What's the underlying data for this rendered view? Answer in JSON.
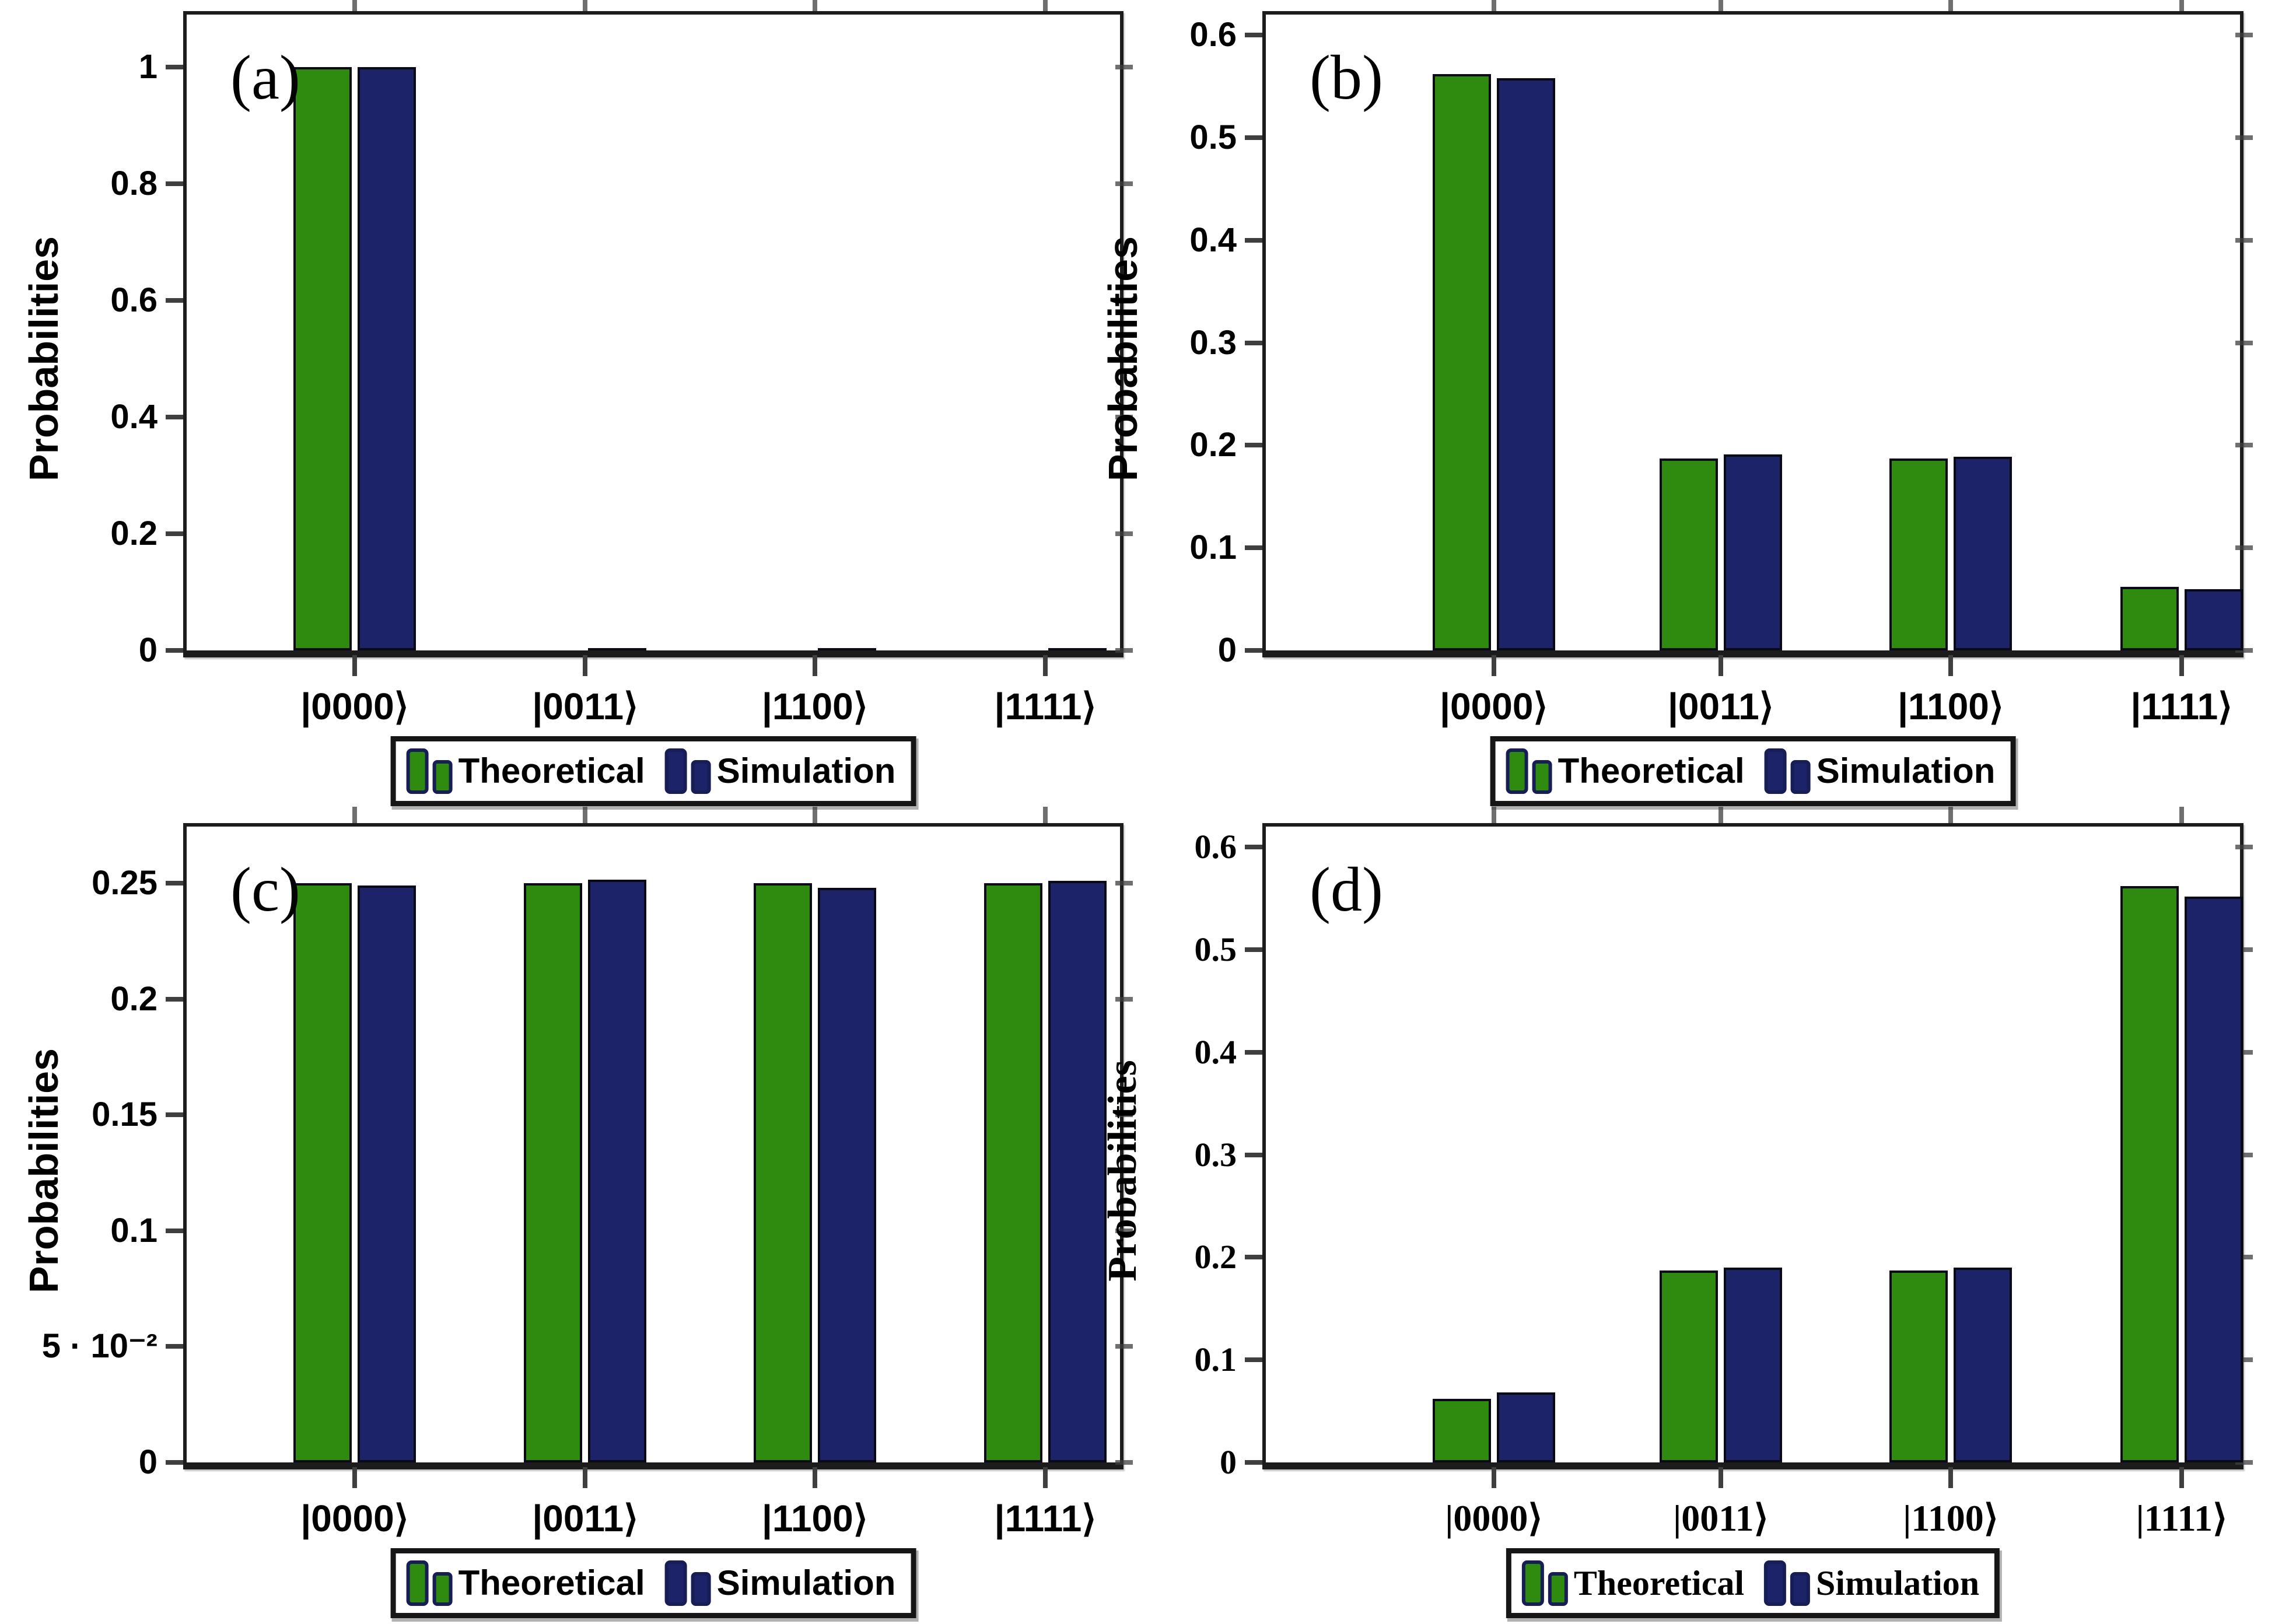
{
  "figure": {
    "ylabel": "Probabilities",
    "legend": {
      "theoretical": "Theoretical",
      "simulation": "Simulation"
    },
    "colors": {
      "theoretical_green": "#2f8a10",
      "simulation_navy": "#1c2368",
      "bar_outline": "#0a0a16",
      "axis": "#1c1c1c",
      "tick": "#3f3f3f",
      "text": "#000000",
      "background": "#ffffff"
    }
  },
  "chart_data": [
    {
      "id": "a",
      "type": "bar",
      "panel_label": "(a)",
      "font_style": "sans",
      "title": "",
      "xlabel": "",
      "ylabel": "Probabilities",
      "categories": [
        "|0000⟩",
        "|0011⟩",
        "|1100⟩",
        "|1111⟩"
      ],
      "series": [
        {
          "name": "Theoretical",
          "color": "#2f8a10",
          "values": [
            1,
            0,
            0,
            0
          ]
        },
        {
          "name": "Simulation",
          "color": "#1c2368",
          "values": [
            1,
            0.004,
            0.004,
            0.004
          ]
        }
      ],
      "yticks": [
        0,
        0.2,
        0.4,
        0.6,
        0.8,
        1
      ],
      "ytick_labels": [
        "0",
        "0.2",
        "0.4",
        "0.6",
        "0.8",
        "1"
      ],
      "ylim": [
        0,
        1.09
      ],
      "grid": false,
      "legend_position": "below"
    },
    {
      "id": "b",
      "type": "bar",
      "panel_label": "(b)",
      "font_style": "sans",
      "title": "",
      "xlabel": "",
      "ylabel": "Probabilities",
      "categories": [
        "|0000⟩",
        "|0011⟩",
        "|1100⟩",
        "|1111⟩"
      ],
      "series": [
        {
          "name": "Theoretical",
          "color": "#2f8a10",
          "values": [
            0.562,
            0.187,
            0.187,
            0.062
          ]
        },
        {
          "name": "Simulation",
          "color": "#1c2368",
          "values": [
            0.558,
            0.191,
            0.189,
            0.06
          ]
        }
      ],
      "yticks": [
        0,
        0.1,
        0.2,
        0.3,
        0.4,
        0.5,
        0.6
      ],
      "ytick_labels": [
        "0",
        "0.1",
        "0.2",
        "0.3",
        "0.4",
        "0.5",
        "0.6"
      ],
      "ylim": [
        0,
        0.62
      ],
      "grid": false,
      "legend_position": "below"
    },
    {
      "id": "c",
      "type": "bar",
      "panel_label": "(c)",
      "font_style": "sans",
      "title": "",
      "xlabel": "",
      "ylabel": "Probabilities",
      "categories": [
        "|0000⟩",
        "|0011⟩",
        "|1100⟩",
        "|1111⟩"
      ],
      "series": [
        {
          "name": "Theoretical",
          "color": "#2f8a10",
          "values": [
            0.25,
            0.25,
            0.25,
            0.25
          ]
        },
        {
          "name": "Simulation",
          "color": "#1c2368",
          "values": [
            0.249,
            0.2515,
            0.248,
            0.251
          ]
        }
      ],
      "yticks": [
        0,
        0.05,
        0.1,
        0.15,
        0.2,
        0.25
      ],
      "ytick_labels": [
        "0",
        "5 · 10⁻²",
        "0.1",
        "0.15",
        "0.2",
        "0.25"
      ],
      "ylim": [
        0,
        0.2745
      ],
      "grid": false,
      "legend_position": "below"
    },
    {
      "id": "d",
      "type": "bar",
      "panel_label": "(d)",
      "font_style": "serif",
      "title": "",
      "xlabel": "",
      "ylabel": "Probabilities",
      "categories": [
        "|0000⟩",
        "|0011⟩",
        "|1100⟩",
        "|1111⟩"
      ],
      "series": [
        {
          "name": "Theoretical",
          "color": "#2f8a10",
          "values": [
            0.062,
            0.187,
            0.187,
            0.562
          ]
        },
        {
          "name": "Simulation",
          "color": "#1c2368",
          "values": [
            0.068,
            0.19,
            0.19,
            0.552
          ]
        }
      ],
      "yticks": [
        0,
        0.1,
        0.2,
        0.3,
        0.4,
        0.5,
        0.6
      ],
      "ytick_labels": [
        "0",
        "0.1",
        "0.2",
        "0.3",
        "0.4",
        "0.5",
        "0.6"
      ],
      "ylim": [
        0,
        0.62
      ],
      "grid": false,
      "legend_position": "below"
    }
  ]
}
